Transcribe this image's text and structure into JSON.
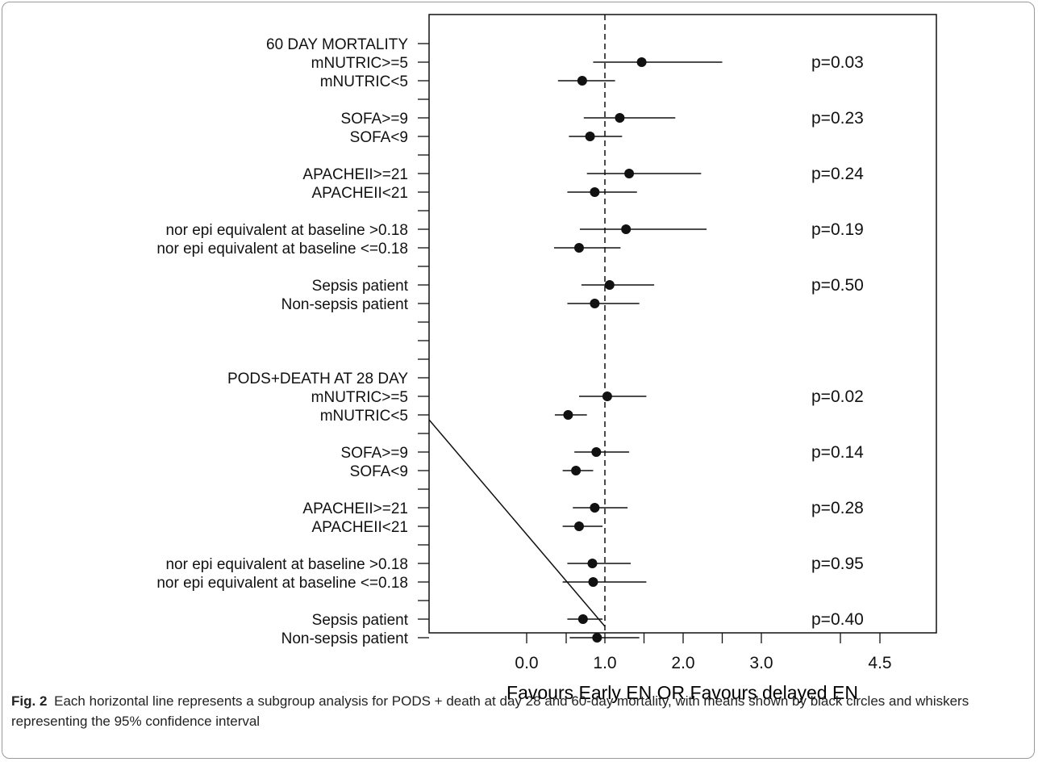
{
  "chart_data": {
    "type": "forest",
    "xlabel": "Favours Early EN OR Favours delayed EN",
    "x_ticks": [
      "0.0",
      "1.0",
      "2.0",
      "3.0",
      "4.5"
    ],
    "reference_line": 1.0,
    "rows": [
      {
        "label": "60 DAY MORTALITY",
        "estimate": null,
        "lower": null,
        "upper": null,
        "p": ""
      },
      {
        "label": "mNUTRIC>=5",
        "estimate": 1.52,
        "lower": 0.9,
        "upper": 2.55,
        "p": "p=0.03"
      },
      {
        "label": "mNUTRIC<5",
        "estimate": 0.76,
        "lower": 0.45,
        "upper": 1.18,
        "p": ""
      },
      {
        "label": "",
        "estimate": null,
        "lower": null,
        "upper": null,
        "p": ""
      },
      {
        "label": "SOFA>=9",
        "estimate": 1.24,
        "lower": 0.78,
        "upper": 1.95,
        "p": "p=0.23"
      },
      {
        "label": "SOFA<9",
        "estimate": 0.86,
        "lower": 0.59,
        "upper": 1.27,
        "p": ""
      },
      {
        "label": "",
        "estimate": null,
        "lower": null,
        "upper": null,
        "p": ""
      },
      {
        "label": "APACHEII>=21",
        "estimate": 1.36,
        "lower": 0.82,
        "upper": 2.28,
        "p": "p=0.24"
      },
      {
        "label": "APACHEII<21",
        "estimate": 0.92,
        "lower": 0.57,
        "upper": 1.46,
        "p": ""
      },
      {
        "label": "",
        "estimate": null,
        "lower": null,
        "upper": null,
        "p": ""
      },
      {
        "label": "nor epi equivalent at baseline >0.18",
        "estimate": 1.32,
        "lower": 0.73,
        "upper": 2.35,
        "p": "p=0.19"
      },
      {
        "label": "nor epi equivalent at baseline <=0.18",
        "estimate": 0.72,
        "lower": 0.4,
        "upper": 1.25,
        "p": ""
      },
      {
        "label": "",
        "estimate": null,
        "lower": null,
        "upper": null,
        "p": ""
      },
      {
        "label": "Sepsis patient",
        "estimate": 1.11,
        "lower": 0.75,
        "upper": 1.68,
        "p": "p=0.50"
      },
      {
        "label": "Non-sepsis patient",
        "estimate": 0.92,
        "lower": 0.57,
        "upper": 1.49,
        "p": ""
      },
      {
        "label": "",
        "estimate": null,
        "lower": null,
        "upper": null,
        "p": ""
      },
      {
        "label": "",
        "estimate": null,
        "lower": null,
        "upper": null,
        "p": ""
      },
      {
        "label": "",
        "estimate": null,
        "lower": null,
        "upper": null,
        "p": ""
      },
      {
        "label": "PODS+DEATH AT 28 DAY",
        "estimate": null,
        "lower": null,
        "upper": null,
        "p": ""
      },
      {
        "label": "mNUTRIC>=5",
        "estimate": 1.08,
        "lower": 0.72,
        "upper": 1.58,
        "p": "p=0.02"
      },
      {
        "label": "mNUTRIC<5",
        "estimate": 0.58,
        "lower": 0.41,
        "upper": 0.82,
        "p": ""
      },
      {
        "label": "",
        "estimate": null,
        "lower": null,
        "upper": null,
        "p": ""
      },
      {
        "label": "SOFA>=9",
        "estimate": 0.94,
        "lower": 0.66,
        "upper": 1.36,
        "p": "p=0.14"
      },
      {
        "label": "SOFA<9",
        "estimate": 0.68,
        "lower": 0.51,
        "upper": 0.9,
        "p": ""
      },
      {
        "label": "",
        "estimate": null,
        "lower": null,
        "upper": null,
        "p": ""
      },
      {
        "label": "APACHEII>=21",
        "estimate": 0.92,
        "lower": 0.64,
        "upper": 1.34,
        "p": "p=0.28"
      },
      {
        "label": "APACHEII<21",
        "estimate": 0.72,
        "lower": 0.51,
        "upper": 1.02,
        "p": ""
      },
      {
        "label": "",
        "estimate": null,
        "lower": null,
        "upper": null,
        "p": ""
      },
      {
        "label": "nor epi equivalent at baseline >0.18",
        "estimate": 0.89,
        "lower": 0.57,
        "upper": 1.38,
        "p": "p=0.95"
      },
      {
        "label": "nor epi equivalent at baseline <=0.18",
        "estimate": 0.9,
        "lower": 0.51,
        "upper": 1.58,
        "p": ""
      },
      {
        "label": "",
        "estimate": null,
        "lower": null,
        "upper": null,
        "p": ""
      },
      {
        "label": "Sepsis patient",
        "estimate": 0.77,
        "lower": 0.57,
        "upper": 1.02,
        "p": "p=0.40"
      },
      {
        "label": "Non-sepsis patient",
        "estimate": 0.95,
        "lower": 0.6,
        "upper": 1.49,
        "p": ""
      }
    ]
  },
  "caption": {
    "label": "Fig. 2",
    "text": "Each horizontal line represents a subgroup analysis for PODS + death at day 28 and 60-day mortality, with means shown by black circles and whiskers representing the 95% confidence interval"
  }
}
